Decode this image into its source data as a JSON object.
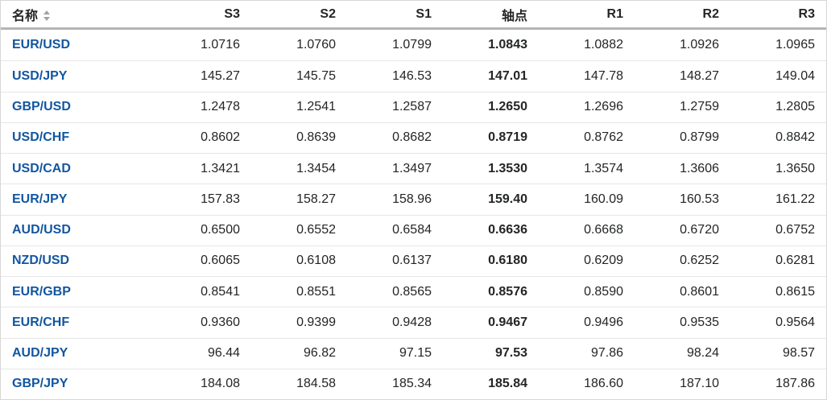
{
  "table": {
    "columns": [
      {
        "key": "name",
        "label": "名称"
      },
      {
        "key": "s3",
        "label": "S3"
      },
      {
        "key": "s2",
        "label": "S2"
      },
      {
        "key": "s1",
        "label": "S1"
      },
      {
        "key": "pivot",
        "label": "轴点"
      },
      {
        "key": "r1",
        "label": "R1"
      },
      {
        "key": "r2",
        "label": "R2"
      },
      {
        "key": "r3",
        "label": "R3"
      }
    ],
    "rows": [
      {
        "name": "EUR/USD",
        "s3": "1.0716",
        "s2": "1.0760",
        "s1": "1.0799",
        "pivot": "1.0843",
        "r1": "1.0882",
        "r2": "1.0926",
        "r3": "1.0965"
      },
      {
        "name": "USD/JPY",
        "s3": "145.27",
        "s2": "145.75",
        "s1": "146.53",
        "pivot": "147.01",
        "r1": "147.78",
        "r2": "148.27",
        "r3": "149.04"
      },
      {
        "name": "GBP/USD",
        "s3": "1.2478",
        "s2": "1.2541",
        "s1": "1.2587",
        "pivot": "1.2650",
        "r1": "1.2696",
        "r2": "1.2759",
        "r3": "1.2805"
      },
      {
        "name": "USD/CHF",
        "s3": "0.8602",
        "s2": "0.8639",
        "s1": "0.8682",
        "pivot": "0.8719",
        "r1": "0.8762",
        "r2": "0.8799",
        "r3": "0.8842"
      },
      {
        "name": "USD/CAD",
        "s3": "1.3421",
        "s2": "1.3454",
        "s1": "1.3497",
        "pivot": "1.3530",
        "r1": "1.3574",
        "r2": "1.3606",
        "r3": "1.3650"
      },
      {
        "name": "EUR/JPY",
        "s3": "157.83",
        "s2": "158.27",
        "s1": "158.96",
        "pivot": "159.40",
        "r1": "160.09",
        "r2": "160.53",
        "r3": "161.22"
      },
      {
        "name": "AUD/USD",
        "s3": "0.6500",
        "s2": "0.6552",
        "s1": "0.6584",
        "pivot": "0.6636",
        "r1": "0.6668",
        "r2": "0.6720",
        "r3": "0.6752"
      },
      {
        "name": "NZD/USD",
        "s3": "0.6065",
        "s2": "0.6108",
        "s1": "0.6137",
        "pivot": "0.6180",
        "r1": "0.6209",
        "r2": "0.6252",
        "r3": "0.6281"
      },
      {
        "name": "EUR/GBP",
        "s3": "0.8541",
        "s2": "0.8551",
        "s1": "0.8565",
        "pivot": "0.8576",
        "r1": "0.8590",
        "r2": "0.8601",
        "r3": "0.8615"
      },
      {
        "name": "EUR/CHF",
        "s3": "0.9360",
        "s2": "0.9399",
        "s1": "0.9428",
        "pivot": "0.9467",
        "r1": "0.9496",
        "r2": "0.9535",
        "r3": "0.9564"
      },
      {
        "name": "AUD/JPY",
        "s3": "96.44",
        "s2": "96.82",
        "s1": "97.15",
        "pivot": "97.53",
        "r1": "97.86",
        "r2": "98.24",
        "r3": "98.57"
      },
      {
        "name": "GBP/JPY",
        "s3": "184.08",
        "s2": "184.58",
        "s1": "185.34",
        "pivot": "185.84",
        "r1": "186.60",
        "r2": "187.10",
        "r3": "187.86"
      }
    ],
    "icons": {
      "sort": "sort-arrows-icon"
    },
    "colors": {
      "pair_link_blue": "#1256a0",
      "header_rule_gray": "#b5b5b5",
      "row_divider_gray": "#e6e6e6",
      "text_dark": "#232526"
    }
  }
}
